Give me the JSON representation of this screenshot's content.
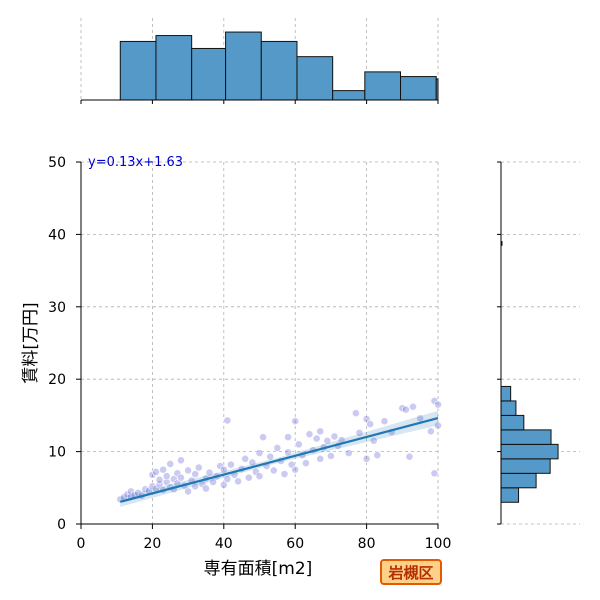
{
  "chart_data": {
    "type": "scatter",
    "xlabel": "専有面積[m2]",
    "ylabel": "賃料[万円]",
    "xlim": [
      0,
      100
    ],
    "ylim": [
      0,
      50
    ],
    "xticks": [
      0,
      20,
      40,
      60,
      80,
      100
    ],
    "yticks": [
      0,
      10,
      20,
      30,
      40,
      50
    ],
    "grid": true,
    "regression": {
      "equation": "y=0.13x+1.63",
      "slope": 0.13,
      "intercept": 1.63,
      "x_range": [
        11,
        100
      ]
    },
    "points": [
      [
        11,
        3.4
      ],
      [
        12,
        3.7
      ],
      [
        13,
        4.1
      ],
      [
        14,
        3.8
      ],
      [
        14,
        4.5
      ],
      [
        15,
        4.0
      ],
      [
        16,
        4.3
      ],
      [
        17,
        3.9
      ],
      [
        18,
        4.8
      ],
      [
        19,
        4.6
      ],
      [
        20,
        5.2
      ],
      [
        20,
        6.8
      ],
      [
        21,
        4.9
      ],
      [
        21,
        7.2
      ],
      [
        22,
        5.5
      ],
      [
        22,
        6.1
      ],
      [
        23,
        4.7
      ],
      [
        23,
        7.5
      ],
      [
        24,
        5.8
      ],
      [
        24,
        6.6
      ],
      [
        25,
        5.1
      ],
      [
        25,
        8.3
      ],
      [
        26,
        6.2
      ],
      [
        26,
        4.8
      ],
      [
        27,
        7.0
      ],
      [
        27,
        5.6
      ],
      [
        28,
        8.8
      ],
      [
        28,
        6.4
      ],
      [
        29,
        5.3
      ],
      [
        30,
        7.4
      ],
      [
        30,
        4.5
      ],
      [
        31,
        6.0
      ],
      [
        32,
        5.2
      ],
      [
        32,
        6.9
      ],
      [
        33,
        7.8
      ],
      [
        34,
        5.5
      ],
      [
        35,
        6.3
      ],
      [
        35,
        4.9
      ],
      [
        36,
        7.1
      ],
      [
        37,
        5.8
      ],
      [
        38,
        6.6
      ],
      [
        39,
        8.0
      ],
      [
        40,
        5.4
      ],
      [
        40,
        7.5
      ],
      [
        41,
        6.2
      ],
      [
        41,
        14.3
      ],
      [
        42,
        8.2
      ],
      [
        43,
        6.8
      ],
      [
        44,
        5.9
      ],
      [
        45,
        7.6
      ],
      [
        46,
        9.0
      ],
      [
        47,
        6.4
      ],
      [
        48,
        8.5
      ],
      [
        49,
        7.2
      ],
      [
        50,
        9.8
      ],
      [
        50,
        6.6
      ],
      [
        51,
        12.0
      ],
      [
        52,
        8.0
      ],
      [
        53,
        9.3
      ],
      [
        54,
        7.4
      ],
      [
        55,
        10.5
      ],
      [
        56,
        8.7
      ],
      [
        57,
        6.9
      ],
      [
        58,
        9.9
      ],
      [
        58,
        12.0
      ],
      [
        59,
        8.2
      ],
      [
        60,
        14.2
      ],
      [
        60,
        7.5
      ],
      [
        61,
        11.0
      ],
      [
        62,
        9.5
      ],
      [
        63,
        8.4
      ],
      [
        64,
        12.4
      ],
      [
        65,
        10.2
      ],
      [
        66,
        11.8
      ],
      [
        67,
        9.0
      ],
      [
        67,
        12.8
      ],
      [
        68,
        10.6
      ],
      [
        69,
        11.5
      ],
      [
        70,
        9.4
      ],
      [
        71,
        12.1
      ],
      [
        72,
        10.8
      ],
      [
        73,
        11.6
      ],
      [
        75,
        9.8
      ],
      [
        77,
        15.3
      ],
      [
        78,
        12.6
      ],
      [
        80,
        14.5
      ],
      [
        80,
        9.0
      ],
      [
        81,
        13.8
      ],
      [
        82,
        11.5
      ],
      [
        83,
        9.5
      ],
      [
        85,
        14.2
      ],
      [
        87,
        12.7
      ],
      [
        90,
        16.0
      ],
      [
        91,
        15.8
      ],
      [
        92,
        9.3
      ],
      [
        93,
        16.2
      ],
      [
        95,
        14.6
      ],
      [
        98,
        12.8
      ],
      [
        99,
        17.0
      ],
      [
        99,
        7.0
      ],
      [
        100,
        16.5
      ],
      [
        100,
        13.6
      ]
    ],
    "x_hist": {
      "bins": [
        11,
        21,
        31,
        40.5,
        50.5,
        60.5,
        70.5,
        79.5,
        89.5,
        99.5,
        100
      ],
      "counts": [
        50,
        55,
        44,
        58,
        50,
        37,
        8,
        24,
        20,
        18
      ],
      "max": 70
    },
    "y_hist": {
      "bins": [
        3,
        5,
        7,
        9,
        11,
        13,
        15,
        17,
        19
      ],
      "counts": [
        20,
        40,
        56,
        65,
        57,
        26,
        17,
        11
      ],
      "outliers": [
        [
          38.5,
          1
        ]
      ],
      "max": 90
    }
  },
  "badge": {
    "text": "岩槻区"
  },
  "colors": {
    "hist_fill": "#5499c7",
    "points": "#6b6bd6",
    "regression_line": "#1f77b4",
    "equation": "#0000cc",
    "badge_border": "#e35a00",
    "badge_fill": "#ffd08a"
  }
}
